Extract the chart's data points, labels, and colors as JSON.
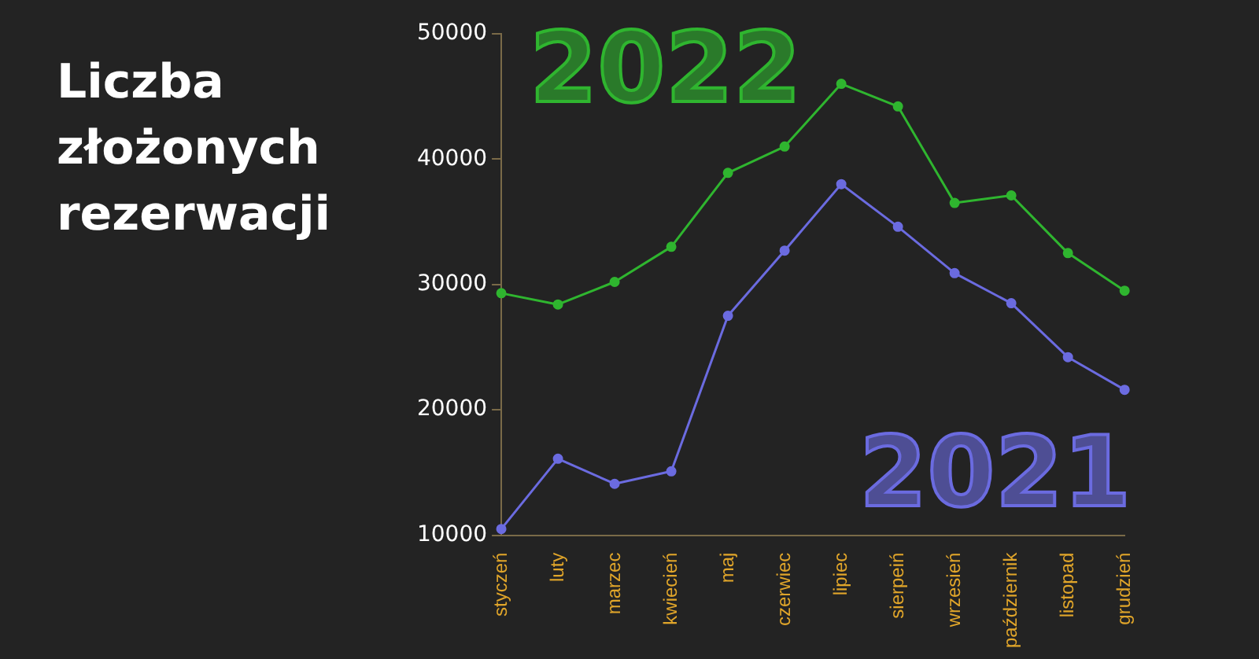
{
  "chart_data": {
    "type": "line",
    "title": "Liczba złożonych rezerwacji",
    "categories": [
      "styczeń",
      "luty",
      "marzec",
      "kwiecień",
      "maj",
      "czerwiec",
      "lipiec",
      "sierpeiń",
      "wrzesień",
      "październik",
      "listopad",
      "grudzień"
    ],
    "series": [
      {
        "name": "2022",
        "color": "#2fb52f",
        "values": [
          29300,
          28400,
          30200,
          33000,
          38900,
          41000,
          46000,
          44200,
          36500,
          37100,
          32500,
          29500
        ]
      },
      {
        "name": "2021",
        "color": "#6b6be0",
        "values": [
          10500,
          16100,
          14100,
          15100,
          27500,
          32700,
          38000,
          34600,
          30900,
          28500,
          24200,
          21600
        ]
      }
    ],
    "ylim": [
      10000,
      50000
    ],
    "yticks": [
      10000,
      20000,
      30000,
      40000,
      50000
    ],
    "grid": false,
    "legend": false,
    "marker": "circle",
    "line_style": "solid"
  }
}
